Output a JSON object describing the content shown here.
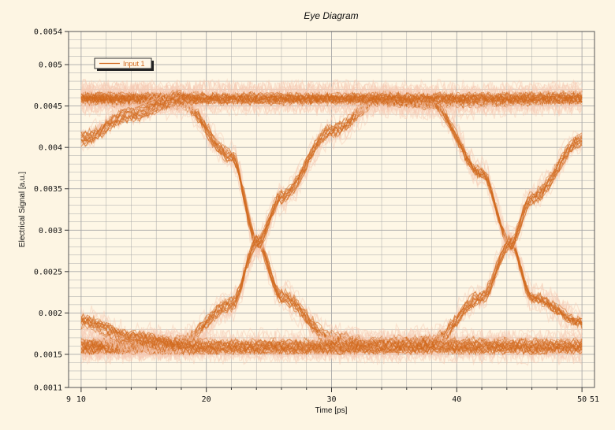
{
  "chart_data": {
    "type": "line",
    "title": "Eye Diagram",
    "xlabel": "Time [ps]",
    "ylabel": "Electrical Signal [a.u.]",
    "xlim": [
      9,
      51
    ],
    "ylim": [
      0.0011,
      0.0054
    ],
    "x_ticks": [
      9,
      10,
      20,
      30,
      40,
      50,
      51
    ],
    "x_tick_labels": [
      "9",
      "10",
      "20",
      "30",
      "40",
      "50",
      "51"
    ],
    "y_ticks": [
      0.0011,
      0.0015,
      0.002,
      0.0025,
      0.003,
      0.0035,
      0.004,
      0.0045,
      0.005,
      0.0054
    ],
    "y_tick_labels": [
      "0.0011",
      "0.0015",
      "0.002",
      "0.0025",
      "0.003",
      "0.0035",
      "0.004",
      "0.0045",
      "0.005",
      "0.0054"
    ],
    "grid": true,
    "legend": {
      "placement": "top-left",
      "entries": [
        "Input 1"
      ]
    },
    "colors": {
      "trace": "#d2691e",
      "halo": "#f6c9b3",
      "background": "#fdf5e3",
      "plot_background": "#fef7e6",
      "grid": "#a8a8a8"
    },
    "series": [
      {
        "name": "Input 1",
        "trace_kind": "eye-diagram-overlay",
        "high_level": 0.0046,
        "low_level": 0.0016,
        "crossing_level": 0.00285,
        "crossing_times": [
          24.1,
          44.3
        ],
        "noise_spread": 0.00025,
        "paths": [
          {
            "x": [
              10,
              18,
              22,
              24.1,
              26,
              30,
              34,
              38,
              50
            ],
            "y": [
              0.0046,
              0.00455,
              0.0039,
              0.00285,
              0.0022,
              0.0017,
              0.0016,
              0.00162,
              0.0016
            ]
          },
          {
            "x": [
              10,
              18,
              22,
              24.1,
              26,
              30,
              34,
              38,
              50
            ],
            "y": [
              0.0016,
              0.00165,
              0.0021,
              0.00285,
              0.0034,
              0.0042,
              0.0046,
              0.00455,
              0.0046
            ]
          },
          {
            "x": [
              10,
              30,
              38,
              42,
              44.3,
              46,
              50
            ],
            "y": [
              0.0046,
              0.0046,
              0.00455,
              0.0037,
              0.00285,
              0.0022,
              0.0019
            ]
          },
          {
            "x": [
              10,
              30,
              38,
              42,
              44.3,
              46,
              50
            ],
            "y": [
              0.0016,
              0.0016,
              0.00165,
              0.0022,
              0.00285,
              0.0034,
              0.0041
            ]
          },
          {
            "x": [
              10,
              50
            ],
            "y": [
              0.0046,
              0.0046
            ]
          },
          {
            "x": [
              10,
              50
            ],
            "y": [
              0.0016,
              0.0016
            ]
          },
          {
            "x": [
              10,
              14,
              18
            ],
            "y": [
              0.0041,
              0.0044,
              0.0046
            ]
          },
          {
            "x": [
              10,
              14,
              18
            ],
            "y": [
              0.0019,
              0.0017,
              0.0016
            ]
          }
        ]
      }
    ]
  }
}
